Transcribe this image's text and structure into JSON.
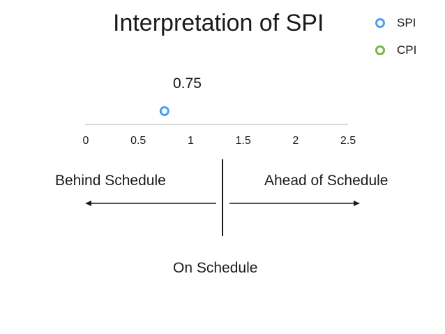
{
  "title": "Interpretation of SPI",
  "legend": [
    {
      "label": "SPI",
      "color": "#4a9ff0"
    },
    {
      "label": "CPI",
      "color": "#7ab648"
    }
  ],
  "chart_data": {
    "type": "scatter",
    "title": "Interpretation of SPI",
    "xlim": [
      0,
      2.5
    ],
    "ticks": [
      "0",
      "0.5",
      "1",
      "1.5",
      "2",
      "2.5"
    ],
    "points": [
      {
        "series": "SPI",
        "x": 0.75,
        "label": "0.75"
      }
    ]
  },
  "labels": {
    "behind": "Behind Schedule",
    "ahead": "Ahead of Schedule",
    "on": "On Schedule"
  }
}
